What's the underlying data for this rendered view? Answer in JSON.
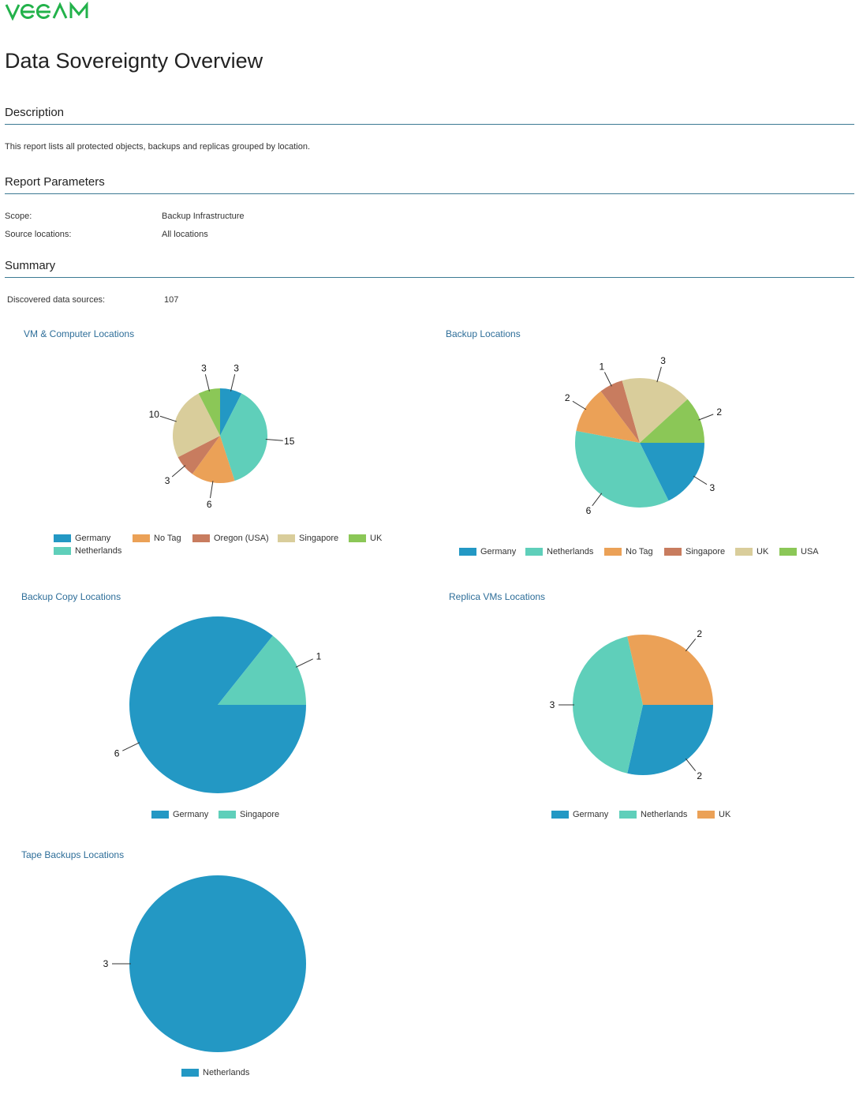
{
  "brand": {
    "logo_text": "VEEAM",
    "logo_color": "#23b24b"
  },
  "header": {
    "title": "Data Sovereignty Overview"
  },
  "description": {
    "heading": "Description",
    "text": "This report lists all protected objects, backups and replicas grouped by location."
  },
  "parameters": {
    "heading": "Report Parameters",
    "rows": [
      {
        "label": "Scope:",
        "value": "Backup Infrastructure"
      },
      {
        "label": "Source locations:",
        "value": "All locations"
      }
    ]
  },
  "summary": {
    "heading": "Summary",
    "discovered_label": "Discovered data sources:",
    "discovered_value": "107"
  },
  "colors": {
    "accent_line": "#3c7a93",
    "chart_title": "#2e6e99",
    "Germany": "#2398c4",
    "Netherlands": "#5fcfba",
    "No Tag": "#eba157",
    "Oregon (USA)": "#c87c5f",
    "Singapore": "#d9cd9b",
    "UK": "#8bc757",
    "USA": "#8bc757"
  },
  "chart_data": [
    {
      "type": "pie",
      "title": "VM & Computer Locations",
      "categories": [
        "Germany",
        "Netherlands",
        "No Tag",
        "Oregon (USA)",
        "Singapore",
        "UK"
      ],
      "values": [
        3,
        15,
        6,
        3,
        10,
        3
      ],
      "colors": [
        "#2398c4",
        "#5fcfba",
        "#eba157",
        "#c87c5f",
        "#d9cd9b",
        "#8bc757"
      ],
      "labels": [
        "3",
        "15",
        "6",
        "3",
        "10",
        "3"
      ],
      "legend": "bottom"
    },
    {
      "type": "pie",
      "title": "Backup Locations",
      "categories": [
        "Germany",
        "Netherlands",
        "No Tag",
        "Singapore",
        "UK",
        "USA"
      ],
      "values": [
        3,
        6,
        2,
        1,
        3,
        2
      ],
      "colors": [
        "#2398c4",
        "#5fcfba",
        "#eba157",
        "#c87c5f",
        "#d9cd9b",
        "#8bc757"
      ],
      "labels": [
        "3",
        "6",
        "2",
        "1",
        "3",
        "2"
      ],
      "legend": "bottom"
    },
    {
      "type": "pie",
      "title": "Backup Copy Locations",
      "categories": [
        "Germany",
        "Singapore"
      ],
      "values": [
        6,
        1
      ],
      "colors": [
        "#2398c4",
        "#5fcfba"
      ],
      "labels": [
        "6",
        "1"
      ],
      "legend": "bottom"
    },
    {
      "type": "pie",
      "title": "Replica VMs Locations",
      "categories": [
        "Germany",
        "Netherlands",
        "UK"
      ],
      "values": [
        2,
        3,
        2
      ],
      "colors": [
        "#2398c4",
        "#5fcfba",
        "#eba157"
      ],
      "labels": [
        "2",
        "3",
        "2"
      ],
      "legend": "bottom"
    },
    {
      "type": "pie",
      "title": "Tape Backups Locations",
      "categories": [
        "Netherlands"
      ],
      "values": [
        3
      ],
      "colors": [
        "#2398c4"
      ],
      "labels": [
        "3"
      ],
      "legend": "bottom"
    }
  ]
}
